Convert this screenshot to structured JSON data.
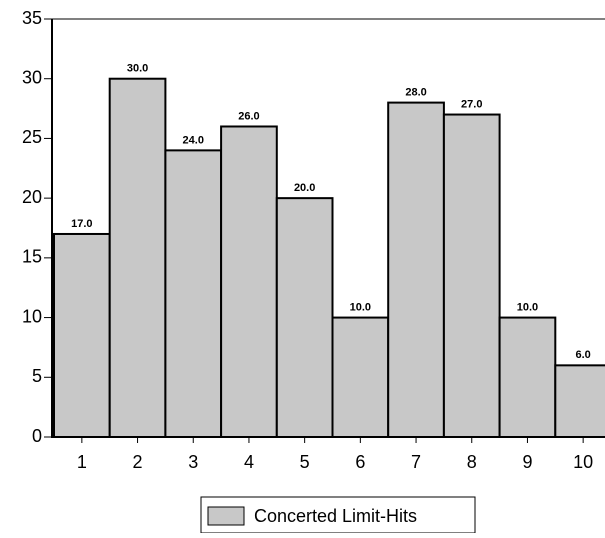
{
  "chart_data": {
    "type": "bar",
    "categories": [
      "1",
      "2",
      "3",
      "4",
      "5",
      "6",
      "7",
      "8",
      "9",
      "10"
    ],
    "series": [
      {
        "name": "Concerted Limit-Hits",
        "color": "#c8c8c8",
        "values": [
          17,
          30,
          24,
          26,
          20,
          10,
          28,
          27,
          10,
          6
        ],
        "value_labels": [
          "17.0",
          "30.0",
          "24.0",
          "26.0",
          "20.0",
          "10.0",
          "28.0",
          "27.0",
          "10.0",
          "6.0"
        ]
      }
    ],
    "ylim": [
      0,
      35
    ],
    "yticks": [
      0,
      5,
      10,
      15,
      20,
      25,
      30,
      35
    ],
    "legend": "bottom"
  }
}
